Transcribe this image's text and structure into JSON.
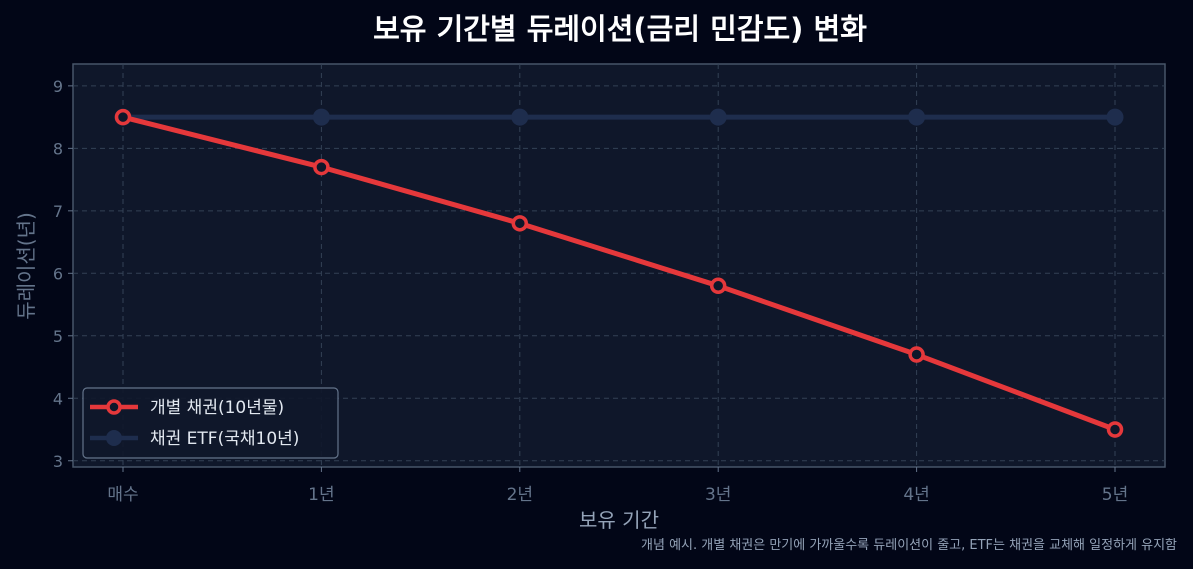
{
  "chart_data": {
    "type": "line",
    "title": "보유 기간별 듀레이션(금리 민감도) 변화",
    "xlabel": "보유 기간",
    "ylabel": "듀레이션(년)",
    "categories": [
      "매수",
      "1년",
      "2년",
      "3년",
      "4년",
      "5년"
    ],
    "yticks": [
      "3",
      "4",
      "5",
      "6",
      "7",
      "8",
      "9"
    ],
    "ylim": [
      2.9,
      9.35
    ],
    "grid": true,
    "legend_position": "lower-left",
    "series": [
      {
        "name": "개별 채권(10년물)",
        "values": [
          8.5,
          7.7,
          6.8,
          5.8,
          4.7,
          3.5
        ],
        "color": "#e5383b",
        "marker": "hollow-circle"
      },
      {
        "name": "채권 ETF(국채10년)",
        "values": [
          8.5,
          8.5,
          8.5,
          8.5,
          8.5,
          8.5
        ],
        "color": "#1e2d4d",
        "marker": "filled-circle"
      }
    ],
    "footnote": "개념 예시. 개별 채권은 만기에 가까울수록 듀레이션이 줄고, ETF는 채권을 교체해 일정하게 유지함"
  },
  "colors": {
    "page_bg": "#020617",
    "plot_bg": "#0f172a",
    "grid": "#334155",
    "axis_text": "#64748b",
    "title": "#ffffff",
    "label": "#94a3b8"
  }
}
